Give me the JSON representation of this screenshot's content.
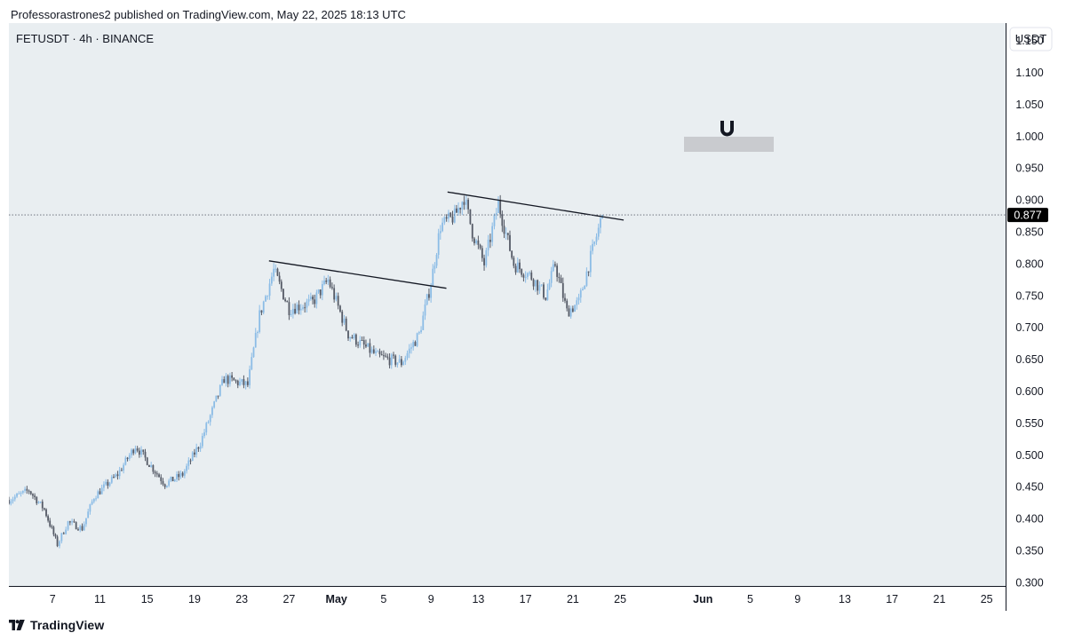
{
  "header": {
    "publish_line": "Professorastrones2 published on TradingView.com, May 22, 2025 18:13 UTC"
  },
  "chart_data": {
    "type": "candlestick",
    "symbol_line": "FETUSDT · 4h · BINANCE",
    "currency": "USDT",
    "last_price": "0.877",
    "y_ticks": [
      "1.150",
      "1.100",
      "1.050",
      "1.000",
      "0.950",
      "0.900",
      "0.850",
      "0.800",
      "0.750",
      "0.700",
      "0.650",
      "0.600",
      "0.550",
      "0.500",
      "0.450",
      "0.400",
      "0.350",
      "0.300"
    ],
    "y_range": [
      0.295,
      1.178
    ],
    "x_ticks": [
      {
        "label": "7",
        "day": 7
      },
      {
        "label": "11",
        "day": 11
      },
      {
        "label": "15",
        "day": 15
      },
      {
        "label": "19",
        "day": 19
      },
      {
        "label": "23",
        "day": 23
      },
      {
        "label": "27",
        "day": 27
      },
      {
        "label": "May",
        "day": 31,
        "bold": true
      },
      {
        "label": "5",
        "day": 35
      },
      {
        "label": "9",
        "day": 39
      },
      {
        "label": "13",
        "day": 43
      },
      {
        "label": "17",
        "day": 47
      },
      {
        "label": "21",
        "day": 51
      },
      {
        "label": "25",
        "day": 55
      },
      {
        "label": "Jun",
        "day": 62,
        "bold": true
      },
      {
        "label": "5",
        "day": 66
      },
      {
        "label": "9",
        "day": 70
      },
      {
        "label": "13",
        "day": 74
      },
      {
        "label": "17",
        "day": 78
      },
      {
        "label": "21",
        "day": 82
      },
      {
        "label": "25",
        "day": 86
      }
    ],
    "x_range_days": [
      3.3,
      87.6
    ],
    "key_closes": [
      {
        "day": 3.3,
        "price": 0.43
      },
      {
        "day": 5.0,
        "price": 0.445
      },
      {
        "day": 6.3,
        "price": 0.415
      },
      {
        "day": 7.4,
        "price": 0.36
      },
      {
        "day": 8.3,
        "price": 0.395
      },
      {
        "day": 9.5,
        "price": 0.385
      },
      {
        "day": 10.5,
        "price": 0.435
      },
      {
        "day": 12.5,
        "price": 0.47
      },
      {
        "day": 14.0,
        "price": 0.515
      },
      {
        "day": 16.5,
        "price": 0.455
      },
      {
        "day": 18.0,
        "price": 0.47
      },
      {
        "day": 19.5,
        "price": 0.52
      },
      {
        "day": 21.5,
        "price": 0.62
      },
      {
        "day": 23.5,
        "price": 0.61
      },
      {
        "day": 24.5,
        "price": 0.72
      },
      {
        "day": 25.7,
        "price": 0.79
      },
      {
        "day": 27.0,
        "price": 0.73
      },
      {
        "day": 29.0,
        "price": 0.74
      },
      {
        "day": 30.3,
        "price": 0.775
      },
      {
        "day": 32.0,
        "price": 0.69
      },
      {
        "day": 34.5,
        "price": 0.655
      },
      {
        "day": 36.5,
        "price": 0.645
      },
      {
        "day": 38.0,
        "price": 0.69
      },
      {
        "day": 39.0,
        "price": 0.77
      },
      {
        "day": 39.8,
        "price": 0.86
      },
      {
        "day": 41.0,
        "price": 0.875
      },
      {
        "day": 41.8,
        "price": 0.905
      },
      {
        "day": 42.5,
        "price": 0.85
      },
      {
        "day": 43.5,
        "price": 0.8
      },
      {
        "day": 44.7,
        "price": 0.895
      },
      {
        "day": 46.0,
        "price": 0.8
      },
      {
        "day": 47.5,
        "price": 0.78
      },
      {
        "day": 48.7,
        "price": 0.75
      },
      {
        "day": 49.5,
        "price": 0.8
      },
      {
        "day": 50.5,
        "price": 0.725
      },
      {
        "day": 51.5,
        "price": 0.74
      },
      {
        "day": 52.5,
        "price": 0.81
      },
      {
        "day": 53.5,
        "price": 0.877
      }
    ],
    "trendlines": [
      {
        "from": {
          "day": 25.3,
          "price": 0.805
        },
        "to": {
          "day": 40.3,
          "price": 0.762
        }
      },
      {
        "from": {
          "day": 40.4,
          "price": 0.913
        },
        "to": {
          "day": 55.3,
          "price": 0.869
        }
      }
    ],
    "colors": {
      "up": "#8bbce6",
      "down": "#555a66",
      "background": "#e9eef1",
      "trendline": "#131722",
      "price_label_bg": "#000000"
    }
  },
  "footer": {
    "brand": "TradingView"
  }
}
